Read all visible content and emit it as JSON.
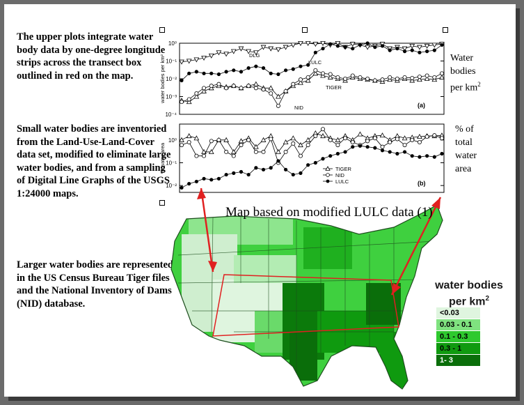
{
  "paragraphs": [
    "The upper plots integrate water body data by one-degree longitude strips across the transect box outlined in red on the map.",
    "Small water bodies are inventoried from the Land-Use-Land-Cover data set, modified  to eliminate large water bodies, and from a sampling of Digital Line Graphs of the USGS 1:24000 maps.",
    "Larger water bodies are represented in the US Census Bureau Tiger files and the National Inventory of Dams (NID) database."
  ],
  "side_labels": {
    "top": [
      "Water",
      "bodies",
      "per km"
    ],
    "top_sup": "2",
    "bottom": [
      "% of",
      "total",
      "water",
      "area"
    ]
  },
  "map_title": "Map based on modified LULC data (1)",
  "legend": {
    "title_line1": "water bodies",
    "title_line2": "per km",
    "title_sup": "2",
    "items": [
      {
        "label": "<0.03",
        "color": "#dff5df"
      },
      {
        "label": "0.03 - 0.1",
        "color": "#7fe27f"
      },
      {
        "label": "0.1 - 0.3",
        "color": "#2ec92e"
      },
      {
        "label": "0.3 - 1",
        "color": "#0f9a0f"
      },
      {
        "label": "1- 3",
        "color": "#0a6e0a"
      }
    ]
  },
  "chart_data": [
    {
      "type": "line",
      "panel_label": "(a)",
      "ylabel": "water bodies per km²",
      "yscale": "log",
      "ylim": [
        0.0001,
        1
      ],
      "y_ticks": [
        "10⁰",
        "10⁻¹",
        "10⁻²",
        "10⁻³",
        "10⁻⁴"
      ],
      "grid": false,
      "series": [
        {
          "name": "DLG",
          "marker": "triangle-down-open",
          "values": [
            0.09,
            0.1,
            0.12,
            0.15,
            0.2,
            0.3,
            0.25,
            0.35,
            0.5,
            0.35,
            0.3,
            0.6,
            0.5,
            0.45,
            0.6,
            0.8,
            1.0,
            1.2,
            0.9,
            1.1,
            0.8,
            1.0,
            0.6,
            0.9,
            0.8,
            0.6,
            0.7,
            0.9,
            0.5,
            0.6,
            0.5,
            0.7,
            0.6,
            0.7,
            0.8,
            0.9
          ]
        },
        {
          "name": "LULC",
          "marker": "circle-filled",
          "values": [
            0.008,
            0.02,
            0.025,
            0.02,
            0.02,
            0.018,
            0.025,
            0.03,
            0.025,
            0.04,
            0.05,
            0.04,
            0.02,
            0.018,
            0.03,
            0.035,
            0.05,
            0.06,
            0.3,
            0.5,
            0.9,
            0.7,
            0.6,
            0.5,
            0.8,
            1.0,
            0.6,
            0.7,
            0.4,
            0.5,
            0.35,
            0.4,
            0.3,
            0.35,
            0.4,
            0.8
          ]
        },
        {
          "name": "TIGER",
          "marker": "triangle-up-open",
          "values": [
            0.0006,
            0.0005,
            0.001,
            0.002,
            0.003,
            0.004,
            0.0035,
            0.004,
            0.003,
            0.004,
            0.005,
            0.003,
            0.003,
            0.001,
            0.002,
            0.004,
            0.006,
            0.008,
            0.02,
            0.015,
            0.012,
            0.01,
            0.008,
            0.012,
            0.01,
            0.009,
            0.008,
            0.007,
            0.009,
            0.008,
            0.01,
            0.008,
            0.009,
            0.01,
            0.009,
            0.012
          ]
        },
        {
          "name": "NID",
          "marker": "circle-open",
          "values": [
            0.0005,
            0.0007,
            0.0015,
            0.003,
            0.004,
            0.005,
            0.003,
            0.004,
            0.003,
            0.004,
            0.003,
            0.0025,
            0.0015,
            0.0003,
            0.002,
            0.005,
            0.009,
            0.012,
            0.03,
            0.02,
            0.018,
            0.012,
            0.01,
            0.015,
            0.012,
            0.01,
            0.008,
            0.009,
            0.012,
            0.01,
            0.012,
            0.011,
            0.013,
            0.015,
            0.012,
            0.02
          ]
        }
      ]
    },
    {
      "type": "line",
      "panel_label": "(b)",
      "ylabel": "% water area",
      "yscale": "log",
      "ylim": [
        0.005,
        5
      ],
      "y_ticks": [
        "10⁰",
        "10⁻¹",
        "10⁻²"
      ],
      "grid": false,
      "legend_position": "lower-left",
      "series": [
        {
          "name": "TIGER",
          "marker": "triangle-up-open",
          "values": [
            1.0,
            1.5,
            1.2,
            0.3,
            0.3,
            1.0,
            1.0,
            0.3,
            0.9,
            1.2,
            0.5,
            1.0,
            1.5,
            0.3,
            0.8,
            1.2,
            0.6,
            1.0,
            2.0,
            1.5,
            1.2,
            1.0,
            1.5,
            1.0,
            1.8,
            1.2,
            1.5,
            1.6,
            1.0,
            1.5,
            1.2,
            1.3,
            1.4,
            1.5,
            1.5,
            1.6
          ]
        },
        {
          "name": "NID",
          "marker": "circle-open",
          "values": [
            0.6,
            0.8,
            0.2,
            0.2,
            0.9,
            1.0,
            0.3,
            0.2,
            0.6,
            1.0,
            0.3,
            0.3,
            1.1,
            0.1,
            0.3,
            0.7,
            0.2,
            0.6,
            1.5,
            3.0,
            1.0,
            0.6,
            1.2,
            0.8,
            0.6,
            0.9,
            1.2,
            0.5,
            0.8,
            1.1,
            0.6,
            1.0,
            0.8,
            1.4,
            1.6,
            1.2
          ]
        },
        {
          "name": "LULC",
          "marker": "circle-filled",
          "values": [
            0.008,
            0.012,
            0.015,
            0.02,
            0.018,
            0.02,
            0.03,
            0.035,
            0.04,
            0.03,
            0.06,
            0.05,
            0.06,
            0.12,
            0.05,
            0.03,
            0.035,
            0.08,
            0.1,
            0.15,
            0.2,
            0.25,
            0.3,
            0.5,
            0.55,
            0.5,
            0.45,
            0.35,
            0.3,
            0.25,
            0.3,
            0.2,
            0.18,
            0.2,
            0.18,
            0.25
          ]
        }
      ]
    }
  ]
}
